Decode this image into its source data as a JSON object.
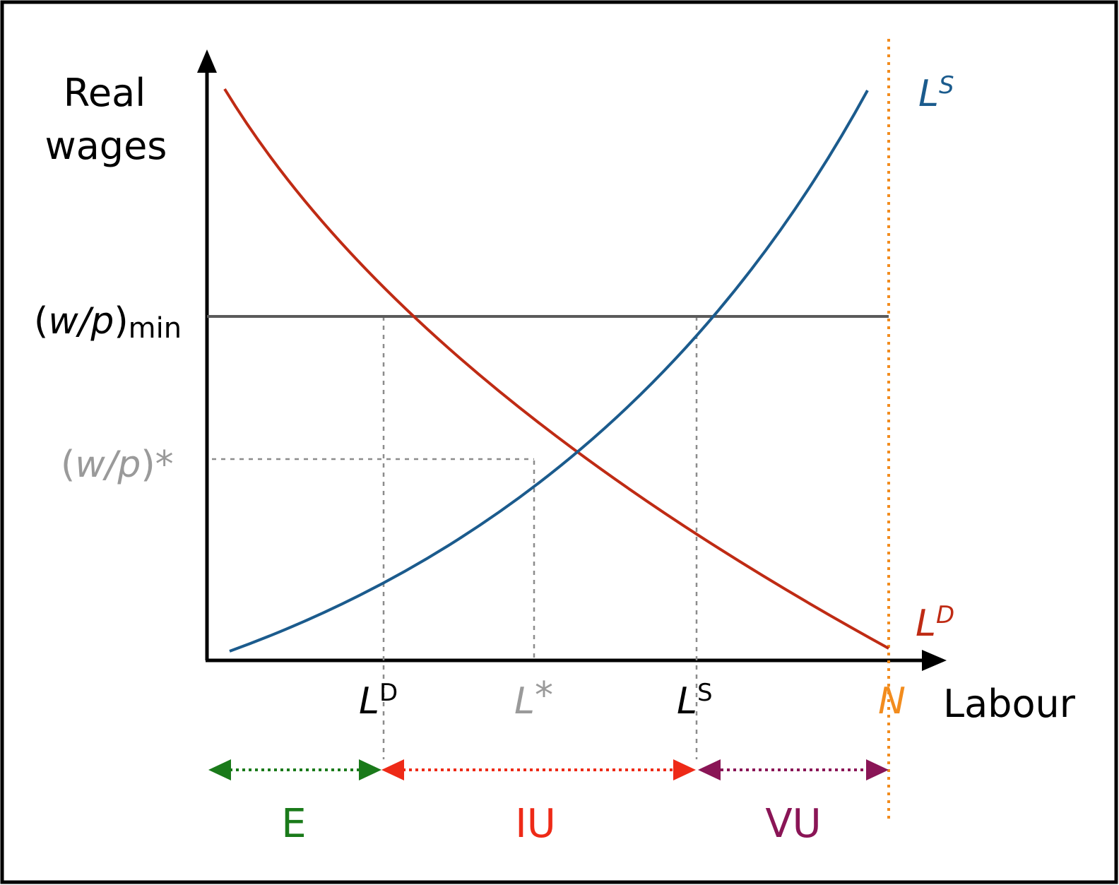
{
  "axes": {
    "y_label_line1": "Real",
    "y_label_line2": "wages",
    "x_label": "Labour"
  },
  "wage_labels": {
    "min_open": "(",
    "min_var": "w/p",
    "min_close": ")",
    "min_sub": "min",
    "eq_open": "(",
    "eq_var": "w/p",
    "eq_close": ")*"
  },
  "quantity_labels": {
    "ld_base": "L",
    "ld_sup": "D",
    "lstar_base": "L",
    "lstar_mark": "*",
    "ls_base": "L",
    "ls_sup": "S",
    "n": "N"
  },
  "curve_labels": {
    "supply_base": "L",
    "supply_sup": "S",
    "demand_base": "L",
    "demand_sup": "D"
  },
  "segments": {
    "employed": "E",
    "involuntary": "IU",
    "voluntary": "VU"
  },
  "colors": {
    "supply": "#1b5b8d",
    "demand": "#bf2b14",
    "min_wage_line": "#5a5a5a",
    "guides": "#8c8c8c",
    "equilibrium_text": "#9a9a9a",
    "labour_force": "#f28c1e",
    "employed": "#1a7a1a",
    "involuntary": "#ee2a17",
    "voluntary": "#8a1556"
  }
}
